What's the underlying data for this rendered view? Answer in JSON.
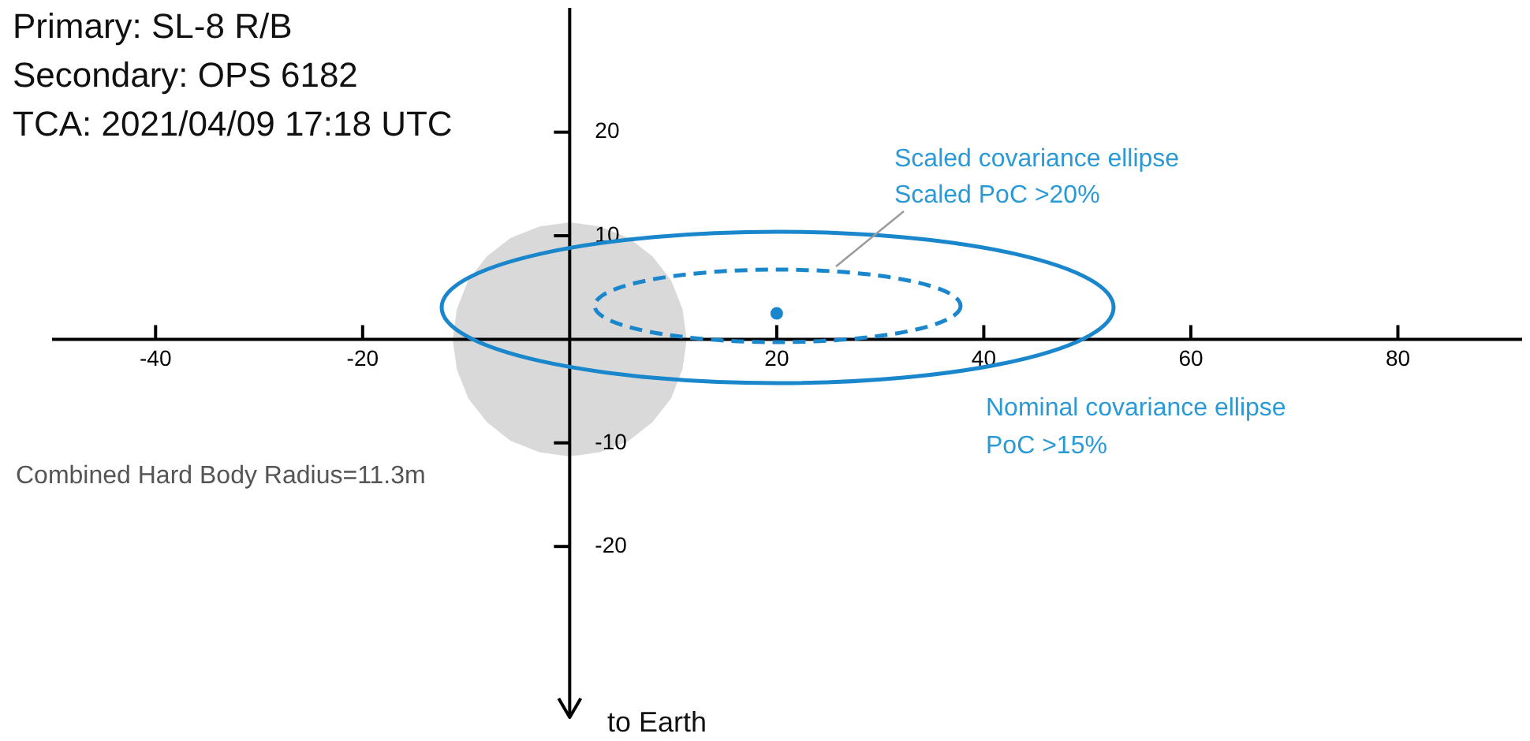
{
  "chart_data": {
    "type": "line",
    "xlim": [
      -50,
      92
    ],
    "ylim": [
      -36.5,
      32
    ],
    "xticks": [
      -40,
      -20,
      20,
      40,
      60,
      80
    ],
    "yticks": [
      -20,
      -10,
      10,
      20
    ],
    "annotations": [
      "Primary: SL-8 R/B",
      "Secondary: OPS 6182",
      "TCA: 2021/04/09 17:18 UTC",
      "Combined Hard Body Radius=11.3m",
      "Scaled covariance ellipse",
      "Scaled PoC >20%",
      "Nominal covariance ellipse",
      "PoC >15%",
      "to Earth"
    ],
    "series": [
      {
        "type": "area",
        "color": "#d9d9d9",
        "x": [
          11.3,
          10.9,
          9.8,
          8.0,
          5.7,
          2.9,
          0,
          -2.9,
          -5.7,
          -8.0,
          -9.8,
          -10.9,
          -11.3,
          -10.9,
          -9.8,
          -8.0,
          -5.7,
          -2.9,
          0,
          2.9,
          5.7,
          8.0,
          9.8,
          10.9,
          11.3
        ],
        "values": [
          0,
          2.9,
          5.7,
          8.0,
          9.8,
          10.9,
          11.3,
          10.9,
          9.8,
          8.0,
          5.7,
          2.9,
          0,
          -2.9,
          -5.7,
          -8.0,
          -9.8,
          -10.9,
          -11.3,
          -10.9,
          -9.8,
          -8.0,
          -5.7,
          -2.9,
          0
        ]
      },
      {
        "type": "scatter",
        "color": "#1a86cc",
        "marker": "circle",
        "x": [
          20
        ],
        "values": [
          2.5
        ]
      }
    ]
  }
}
